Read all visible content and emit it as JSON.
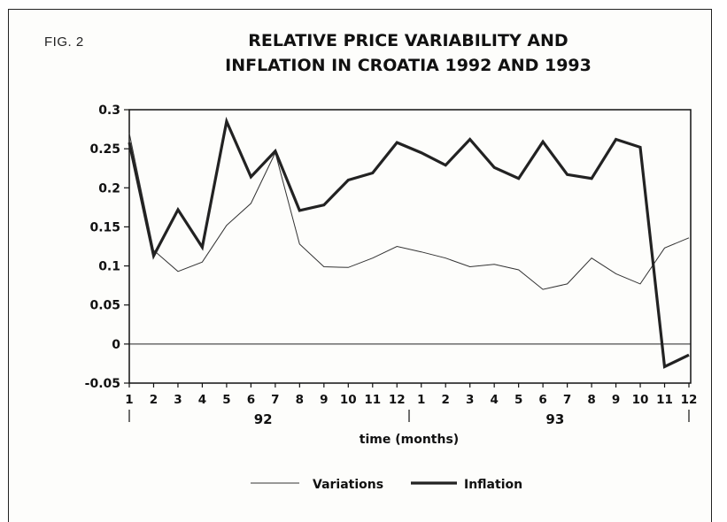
{
  "figure_label": "FIG. 2",
  "chart_data": {
    "type": "line",
    "title_lines": [
      "RELATIVE PRICE VARIABILITY AND",
      "INFLATION IN CROATIA 1992 AND 1993"
    ],
    "xlabel": "time (months)",
    "ylabel": "",
    "ylim": [
      -0.05,
      0.3
    ],
    "yticks": [
      "0.3",
      "0.25",
      "0.2",
      "0.15",
      "0.1",
      "0.05",
      "0",
      "-0.05"
    ],
    "ytick_values": [
      0.3,
      0.25,
      0.2,
      0.15,
      0.1,
      0.05,
      0,
      -0.05
    ],
    "x_tick_labels": [
      "1",
      "2",
      "3",
      "4",
      "5",
      "6",
      "7",
      "8",
      "9",
      "10",
      "11",
      "12",
      "1",
      "2",
      "3",
      "4",
      "5",
      "6",
      "7",
      "8",
      "9",
      "10",
      "11",
      "12"
    ],
    "year_groups": [
      {
        "label": "92",
        "from": 1,
        "to": 12
      },
      {
        "label": "93",
        "from": 13,
        "to": 24
      }
    ],
    "zero_line": true,
    "grid": false,
    "legend_position": "bottom-center",
    "series": [
      {
        "name": "Variations",
        "style": "thin",
        "color": "#333333",
        "values": [
          0.27,
          0.12,
          0.093,
          0.105,
          0.152,
          0.18,
          0.245,
          0.128,
          0.099,
          0.098,
          0.11,
          0.125,
          0.118,
          0.11,
          0.099,
          0.102,
          0.095,
          0.07,
          0.077,
          0.11,
          0.09,
          0.077,
          0.123,
          0.136
        ]
      },
      {
        "name": "Inflation",
        "style": "thick",
        "color": "#222222",
        "values": [
          0.258,
          0.113,
          0.172,
          0.124,
          0.285,
          0.214,
          0.247,
          0.171,
          0.178,
          0.21,
          0.219,
          0.258,
          0.245,
          0.229,
          0.262,
          0.226,
          0.212,
          0.259,
          0.217,
          0.212,
          0.262,
          0.252,
          -0.029,
          -0.014
        ]
      }
    ]
  }
}
